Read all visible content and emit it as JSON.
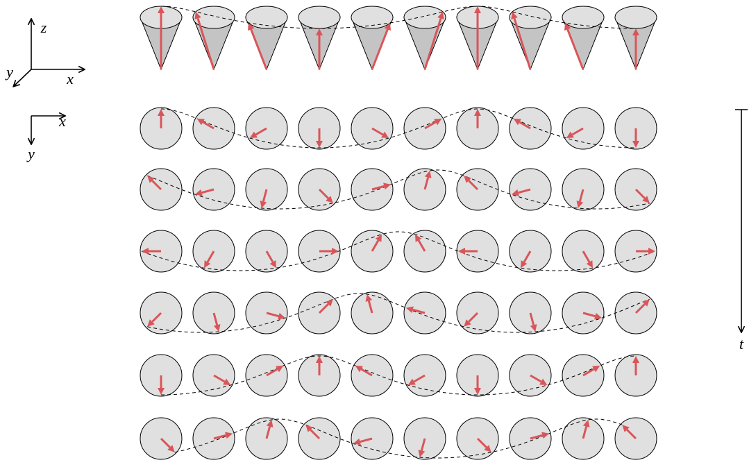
{
  "axes3d": {
    "z": "z",
    "x": "x",
    "y": "y"
  },
  "axes2d": {
    "x": "x",
    "y": "y"
  },
  "time_label": "t"
}
